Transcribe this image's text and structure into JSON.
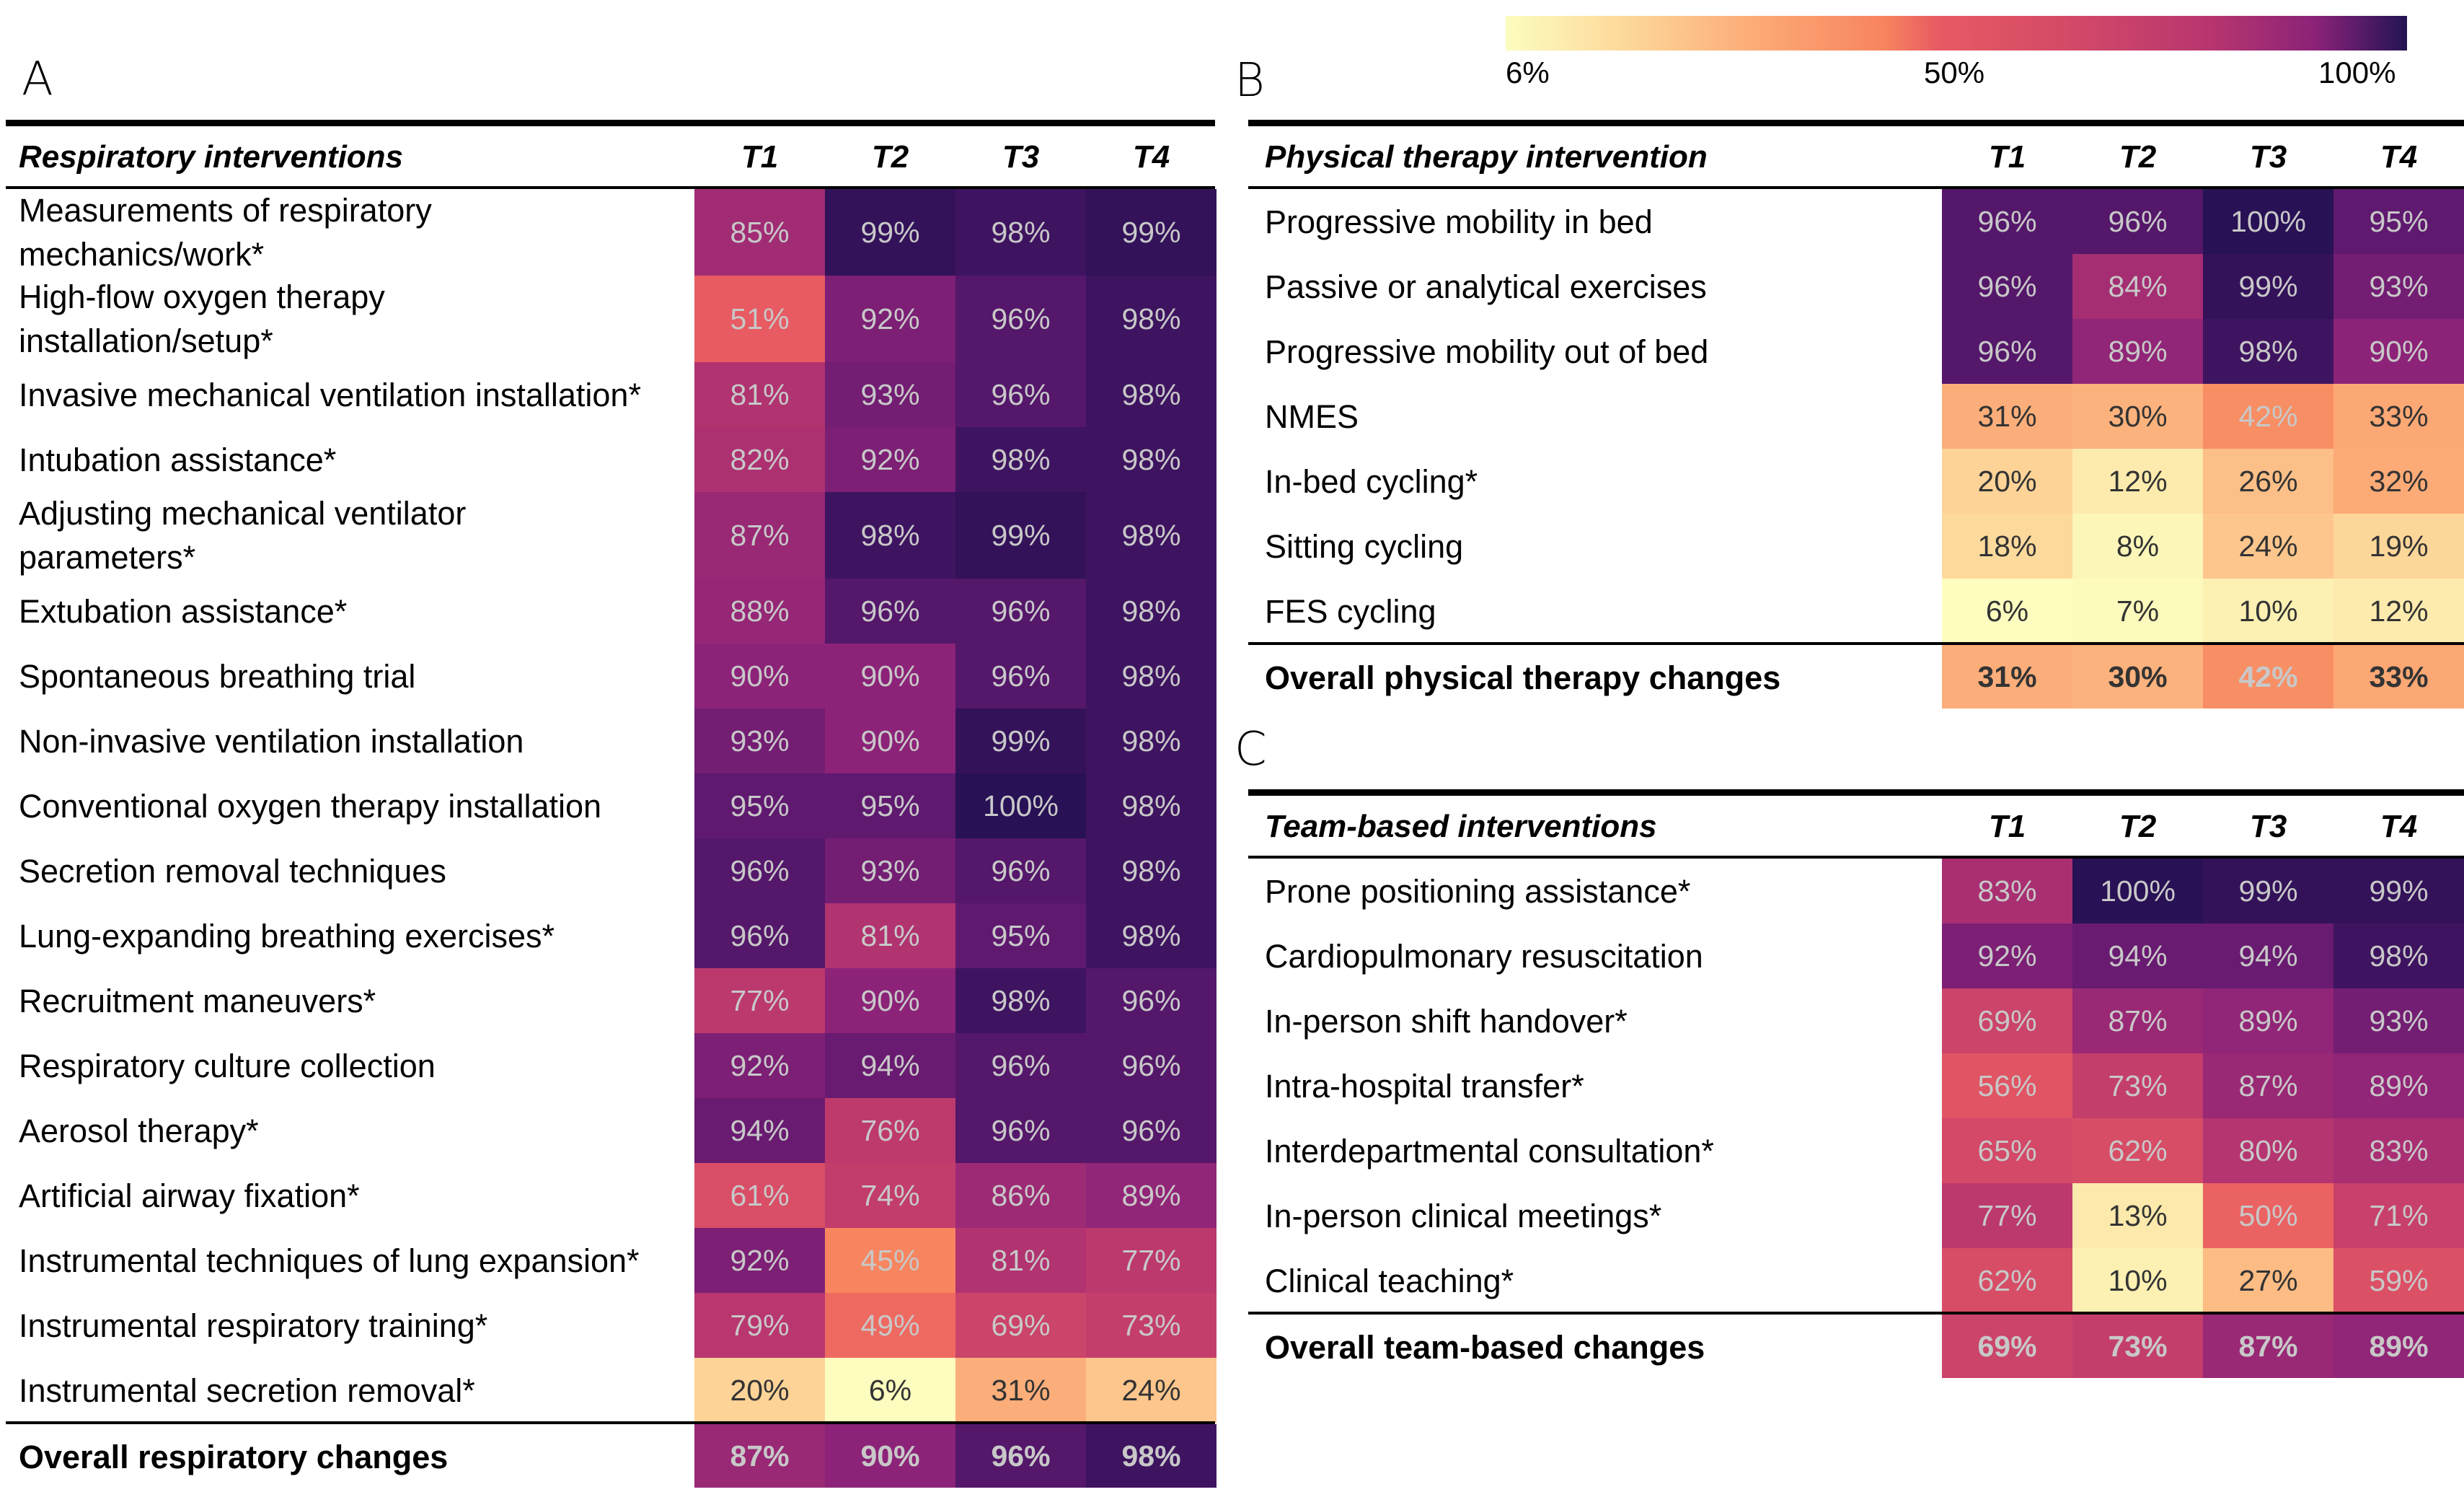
{
  "legend": {
    "colormap": "magma_r",
    "ticks": [
      "6%",
      "50%",
      "100%"
    ],
    "min": 6,
    "mid": 50,
    "max": 100
  },
  "panels": {
    "A": "A",
    "B": "B",
    "C": "C"
  },
  "chart_data": [
    {
      "type": "heatmap",
      "panel": "A",
      "title": "Respiratory interventions",
      "columns": [
        "T1",
        "T2",
        "T3",
        "T4"
      ],
      "rows": [
        {
          "label": "Measurements of respiratory\nmechanics/work*",
          "values": [
            85,
            99,
            98,
            99
          ]
        },
        {
          "label": "High-flow oxygen therapy\ninstallation/setup*",
          "values": [
            51,
            92,
            96,
            98
          ]
        },
        {
          "label": "Invasive mechanical ventilation installation*",
          "values": [
            81,
            93,
            96,
            98
          ]
        },
        {
          "label": "Intubation assistance*",
          "values": [
            82,
            92,
            98,
            98
          ]
        },
        {
          "label": "Adjusting mechanical ventilator\nparameters*",
          "values": [
            87,
            98,
            99,
            98
          ]
        },
        {
          "label": "Extubation assistance*",
          "values": [
            88,
            96,
            96,
            98
          ]
        },
        {
          "label": "Spontaneous breathing trial",
          "values": [
            90,
            90,
            96,
            98
          ]
        },
        {
          "label": "Non-invasive ventilation installation",
          "values": [
            93,
            90,
            99,
            98
          ]
        },
        {
          "label": "Conventional oxygen therapy installation",
          "values": [
            95,
            95,
            100,
            98
          ]
        },
        {
          "label": "Secretion removal techniques",
          "values": [
            96,
            93,
            96,
            98
          ]
        },
        {
          "label": "Lung-expanding breathing exercises*",
          "values": [
            96,
            81,
            95,
            98
          ]
        },
        {
          "label": "Recruitment maneuvers*",
          "values": [
            77,
            90,
            98,
            96
          ]
        },
        {
          "label": "Respiratory culture collection",
          "values": [
            92,
            94,
            96,
            96
          ]
        },
        {
          "label": "Aerosol therapy*",
          "values": [
            94,
            76,
            96,
            96
          ]
        },
        {
          "label": "Artificial airway fixation*",
          "values": [
            61,
            74,
            86,
            89
          ]
        },
        {
          "label": "Instrumental techniques of lung expansion*",
          "values": [
            92,
            45,
            81,
            77
          ]
        },
        {
          "label": "Instrumental respiratory training*",
          "values": [
            79,
            49,
            69,
            73
          ]
        },
        {
          "label": "Instrumental secretion removal*",
          "values": [
            20,
            6,
            31,
            24
          ]
        }
      ],
      "overall": {
        "label": "Overall respiratory changes",
        "values": [
          87,
          90,
          96,
          98
        ]
      },
      "unit": "%",
      "color_range": [
        6,
        100
      ]
    },
    {
      "type": "heatmap",
      "panel": "B",
      "title": "Physical therapy intervention",
      "columns": [
        "T1",
        "T2",
        "T3",
        "T4"
      ],
      "rows": [
        {
          "label": "Progressive mobility in bed",
          "values": [
            96,
            96,
            100,
            95
          ]
        },
        {
          "label": "Passive or analytical exercises",
          "values": [
            96,
            84,
            99,
            93
          ]
        },
        {
          "label": "Progressive mobility out of bed",
          "values": [
            96,
            89,
            98,
            90
          ]
        },
        {
          "label": "NMES",
          "values": [
            31,
            30,
            42,
            33
          ]
        },
        {
          "label": "In-bed cycling*",
          "values": [
            20,
            12,
            26,
            32
          ]
        },
        {
          "label": "Sitting cycling",
          "values": [
            18,
            8,
            24,
            19
          ]
        },
        {
          "label": "FES cycling",
          "values": [
            6,
            7,
            10,
            12
          ]
        }
      ],
      "overall": {
        "label": "Overall physical therapy changes",
        "values": [
          31,
          30,
          42,
          33
        ]
      },
      "unit": "%",
      "color_range": [
        6,
        100
      ]
    },
    {
      "type": "heatmap",
      "panel": "C",
      "title": "Team-based interventions",
      "columns": [
        "T1",
        "T2",
        "T3",
        "T4"
      ],
      "rows": [
        {
          "label": "Prone positioning assistance*",
          "values": [
            83,
            100,
            99,
            99
          ]
        },
        {
          "label": "Cardiopulmonary resuscitation",
          "values": [
            92,
            94,
            94,
            98
          ]
        },
        {
          "label": "In-person shift handover*",
          "values": [
            69,
            87,
            89,
            93
          ]
        },
        {
          "label": "Intra-hospital transfer*",
          "values": [
            56,
            73,
            87,
            89
          ]
        },
        {
          "label": "Interdepartmental consultation*",
          "values": [
            65,
            62,
            80,
            83
          ]
        },
        {
          "label": "In-person clinical meetings*",
          "values": [
            77,
            13,
            50,
            71
          ]
        },
        {
          "label": "Clinical teaching*",
          "values": [
            62,
            10,
            27,
            59
          ]
        }
      ],
      "overall": {
        "label": "Overall team-based changes",
        "values": [
          69,
          73,
          87,
          89
        ]
      },
      "unit": "%",
      "color_range": [
        6,
        100
      ]
    }
  ]
}
